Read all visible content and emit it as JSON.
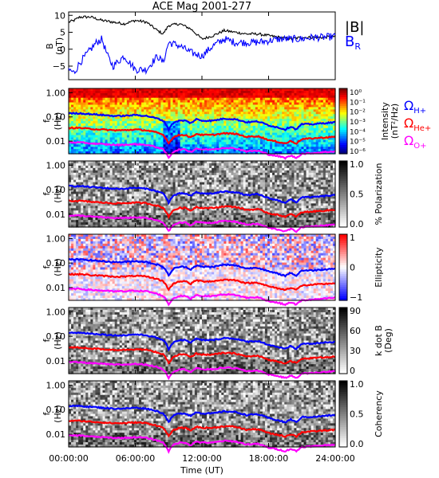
{
  "chart_data": [
    {
      "type": "line",
      "panel": "magnetic-field",
      "title": "ACE Mag 2001-277",
      "ylabel_line1": "B",
      "ylabel_line2": "(nT)",
      "ylim": [
        -9,
        11
      ],
      "yticks": [
        10,
        5,
        0,
        -5
      ],
      "series": [
        {
          "name": "|B|",
          "color": "#000000",
          "x": [
            0,
            0.5,
            1,
            2,
            3,
            4,
            5,
            6,
            7,
            8,
            8.5,
            9,
            10,
            11,
            12,
            13,
            14,
            15,
            16,
            17,
            18,
            19,
            20,
            21,
            22,
            23,
            24
          ],
          "values": [
            8,
            8.5,
            9.5,
            9.5,
            8.5,
            8,
            7.5,
            8.5,
            8,
            5.5,
            4.5,
            7,
            7.5,
            6,
            3,
            4,
            5.5,
            5,
            4.5,
            4.5,
            4,
            3.5,
            3,
            3.5,
            3.5,
            3.5,
            3.8
          ]
        },
        {
          "name": "B",
          "name_subscript": "R",
          "color": "#0000ff",
          "x": [
            0,
            0.5,
            1,
            1.5,
            2,
            2.5,
            3,
            3.5,
            4,
            5,
            6,
            7,
            8,
            8.5,
            9,
            10,
            11,
            12,
            13,
            14,
            15,
            16,
            17,
            18,
            19,
            20,
            21,
            22,
            23,
            24
          ],
          "values": [
            -6,
            -7,
            -4,
            -2,
            0,
            2,
            3,
            -2,
            -5,
            -2,
            -6,
            -6,
            -2,
            -4,
            2,
            1,
            -1,
            -2,
            1,
            3,
            2,
            2,
            2,
            2.5,
            3,
            3,
            3,
            3.5,
            3.5,
            3.8
          ]
        }
      ]
    },
    {
      "type": "heatmap",
      "panel": "intensity",
      "ylabel_line1": "f",
      "ylabel_line2": "(Hz)",
      "yticks": [
        "1.00",
        "0.10",
        "0.01"
      ],
      "colorbar_label_line1": "Intensity",
      "colorbar_label_line2": "(nT²/Hz)",
      "colorbar_ticks": [
        "10⁰",
        "10⁻¹",
        "10⁻²",
        "10⁻³",
        "10⁻⁴",
        "10⁻⁵",
        "10⁻⁶"
      ],
      "legend": [
        {
          "label": "Ω",
          "subscript": "H+",
          "color": "#0000ff"
        },
        {
          "label": "Ω",
          "subscript": "He+",
          "color": "#ff0000"
        },
        {
          "label": "Ω",
          "subscript": "O+",
          "color": "#ff00ff"
        }
      ]
    },
    {
      "type": "heatmap",
      "panel": "polarization",
      "ylabel_line1": "f",
      "ylabel_line2": "(Hz)",
      "yticks": [
        "1.00",
        "0.10",
        "0.01"
      ],
      "colorbar_label_line1": "% Polarization",
      "colorbar_ticks": [
        "1.0",
        "0.5",
        "0.0"
      ]
    },
    {
      "type": "heatmap",
      "panel": "ellipticity",
      "ylabel_line1": "f",
      "ylabel_line2": "(Hz)",
      "yticks": [
        "1.00",
        "0.10",
        "0.01"
      ],
      "colorbar_label_line1": "Ellipticity",
      "colorbar_ticks": [
        "1",
        "0",
        "−1"
      ]
    },
    {
      "type": "heatmap",
      "panel": "kdotb",
      "ylabel_line1": "f",
      "ylabel_line2": "(Hz)",
      "yticks": [
        "1.00",
        "0.10",
        "0.01"
      ],
      "colorbar_label_line1": "k dot B",
      "colorbar_label_line2": "(Deg)",
      "colorbar_ticks": [
        "90",
        "60",
        "30",
        "0"
      ]
    },
    {
      "type": "heatmap",
      "panel": "coherency",
      "ylabel_line1": "f",
      "ylabel_line2": "(Hz)",
      "yticks": [
        "1.00",
        "0.10",
        "0.01"
      ],
      "colorbar_label_line1": "Coherency",
      "colorbar_ticks": [
        "1.0",
        "0.5",
        "0.0"
      ]
    }
  ],
  "gyrofrequency": {
    "x": [
      0,
      1,
      2,
      3,
      4,
      5,
      6,
      7,
      8,
      8.5,
      9,
      9.5,
      10,
      10.5,
      11,
      11.5,
      12,
      13,
      14,
      15,
      16,
      17,
      18,
      19,
      19.5,
      20,
      20.5,
      21,
      22,
      23,
      24
    ],
    "H_plus": [
      0.14,
      0.14,
      0.13,
      0.12,
      0.11,
      0.11,
      0.12,
      0.11,
      0.085,
      0.07,
      0.03,
      0.06,
      0.07,
      0.07,
      0.055,
      0.08,
      0.07,
      0.07,
      0.085,
      0.08,
      0.06,
      0.065,
      0.045,
      0.035,
      0.03,
      0.04,
      0.03,
      0.05,
      0.05,
      0.055,
      0.06
    ],
    "He_plus": [
      0.035,
      0.035,
      0.032,
      0.03,
      0.028,
      0.028,
      0.03,
      0.028,
      0.022,
      0.018,
      0.008,
      0.015,
      0.018,
      0.018,
      0.014,
      0.02,
      0.018,
      0.018,
      0.021,
      0.02,
      0.015,
      0.016,
      0.011,
      0.009,
      0.008,
      0.01,
      0.008,
      0.012,
      0.013,
      0.014,
      0.015
    ],
    "O_plus": [
      0.0088,
      0.0088,
      0.008,
      0.0075,
      0.007,
      0.007,
      0.0075,
      0.007,
      0.0055,
      0.0045,
      0.002,
      0.0038,
      0.0045,
      0.0045,
      0.0035,
      0.005,
      0.0045,
      0.0045,
      0.0053,
      0.005,
      0.0038,
      0.004,
      0.0028,
      0.0023,
      0.002,
      0.0025,
      0.002,
      0.003,
      0.0032,
      0.0035,
      0.0038
    ]
  },
  "xaxis": {
    "label": "Time (UT)",
    "range": [
      0,
      24
    ],
    "ticks": [
      {
        "hour": 0,
        "label": "00:00:00"
      },
      {
        "hour": 6,
        "label": "06:00:00"
      },
      {
        "hour": 12,
        "label": "12:00:00"
      },
      {
        "hour": 18,
        "label": "18:00:00"
      },
      {
        "hour": 24,
        "label": "24:00:00"
      }
    ]
  }
}
